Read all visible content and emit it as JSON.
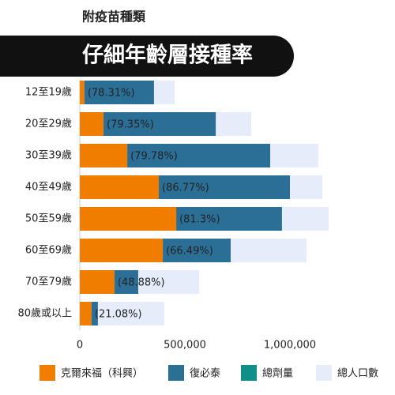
{
  "chart_data": {
    "type": "bar",
    "orientation": "horizontal",
    "subtitle": "附疫苗種類",
    "title": "仔細年齡層接種率",
    "categories": [
      "12至19歲",
      "20至29歲",
      "30至39歲",
      "40至49歲",
      "50至59歲",
      "60至69歲",
      "70至79歲",
      "80歲或以上"
    ],
    "series": [
      {
        "name": "克爾來福（科興）",
        "color": "#f07d00",
        "stack": "doses",
        "values": [
          22000,
          113000,
          226000,
          376000,
          459000,
          395000,
          165000,
          56000
        ]
      },
      {
        "name": "復必泰",
        "color": "#2b6e96",
        "stack": "doses",
        "values": [
          331000,
          534000,
          680000,
          624000,
          503000,
          323000,
          113000,
          30000
        ]
      },
      {
        "name": "總劑量",
        "color": "#0f8f8a",
        "values": [
          null,
          null,
          null,
          null,
          null,
          null,
          null,
          null
        ]
      },
      {
        "name": "總人口數",
        "color": "#e6ecfa",
        "stack": "population",
        "values": [
          451000,
          816000,
          1135000,
          1154000,
          1184000,
          1079000,
          568000,
          402000
        ]
      }
    ],
    "rate_labels": [
      "(78.31%)",
      "(79.35%)",
      "(79.78%)",
      "(86.77%)",
      "(81.3%)",
      "(66.49%)",
      "(48.88%)",
      "(21.08%)"
    ],
    "xlim": [
      0,
      1500000
    ],
    "xticks": [
      0,
      {
        "value": 500000,
        "label": "500,000"
      },
      {
        "value": 1000000,
        "label": "1,000,000"
      }
    ]
  }
}
